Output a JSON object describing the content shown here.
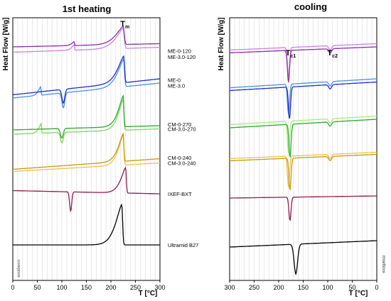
{
  "chart_data": [
    {
      "type": "line",
      "title": "1st heating",
      "title_sub_main": "T",
      "title_sub": "m",
      "ylabel": "Heat Flow [W/g]",
      "xlabel": "T [°C]",
      "side_note": "exotherm",
      "xlim": [
        0,
        300
      ],
      "xticks": [
        0,
        50,
        100,
        150,
        200,
        250,
        300
      ],
      "grid": "vertical",
      "peak_label": {
        "main": "T",
        "sub": "m",
        "x": 225
      },
      "series": [
        {
          "name": "ME-3.0-120",
          "color": "#d080e8",
          "baseline": 0.905,
          "label_pos": 0.883,
          "tail": 0.928,
          "features": [
            {
              "x": 125,
              "amp": 0.025,
              "w": 2
            },
            {
              "x": 225,
              "amp": 0.095,
              "w": 6
            }
          ]
        },
        {
          "name": "ME-0-120",
          "color": "#8c2fa8",
          "baseline": 0.93,
          "label_pos": 0.912,
          "tail": 0.945,
          "features": [
            {
              "x": 125,
              "amp": 0.018,
              "w": 2
            },
            {
              "x": 225,
              "amp": 0.085,
              "w": 6
            }
          ]
        },
        {
          "name": "ME-3.0",
          "color": "#4a90e2",
          "baseline": 0.69,
          "label_pos": 0.748,
          "tail": 0.76,
          "features": [
            {
              "x": 57,
              "amp": 0.04,
              "w": 2
            },
            {
              "x": 103,
              "amp": -0.07,
              "w": 4
            },
            {
              "x": 226,
              "amp": 0.13,
              "w": 5
            }
          ]
        },
        {
          "name": "ME-0",
          "color": "#1a2fd0",
          "baseline": 0.705,
          "label_pos": 0.775,
          "tail": 0.78,
          "features": [
            {
              "x": 103,
              "amp": -0.065,
              "w": 4
            },
            {
              "x": 226,
              "amp": 0.125,
              "w": 5
            }
          ]
        },
        {
          "name": "CM-3.0-270",
          "color": "#7ed957",
          "baseline": 0.52,
          "label_pos": 0.545,
          "tail": 0.545,
          "features": [
            {
              "x": 58,
              "amp": 0.045,
              "w": 2
            },
            {
              "x": 100,
              "amp": -0.05,
              "w": 4
            },
            {
              "x": 225,
              "amp": 0.145,
              "w": 4
            }
          ]
        },
        {
          "name": "CM-0-270",
          "color": "#2fa82f",
          "baseline": 0.54,
          "label_pos": 0.567,
          "tail": 0.56,
          "features": [
            {
              "x": 100,
              "amp": -0.045,
              "w": 4
            },
            {
              "x": 225,
              "amp": 0.145,
              "w": 4
            }
          ]
        },
        {
          "name": "CM-3.0-240",
          "color": "#f2c14e",
          "baseline": 0.345,
          "label_pos": 0.385,
          "tail": 0.385,
          "features": [
            {
              "x": 225,
              "amp": 0.14,
              "w": 4
            }
          ]
        },
        {
          "name": "CM-0-240",
          "color": "#c79a10",
          "baseline": 0.355,
          "label_pos": 0.41,
          "tail": 0.405,
          "features": [
            {
              "x": 225,
              "amp": 0.13,
              "w": 4
            }
          ]
        },
        {
          "name": "IXEF-BXT",
          "color": "#8e1b52",
          "baseline": 0.255,
          "label_pos": 0.24,
          "tail": 0.24,
          "features": [
            {
              "x": 118,
              "amp": -0.09,
              "w": 3
            },
            {
              "x": 230,
              "amp": 0.12,
              "w": 4
            }
          ]
        },
        {
          "name": "Ultramid B27",
          "color": "#000000",
          "baseline": 0.0,
          "label_pos": 0.0,
          "tail": 0.0,
          "features": [
            {
              "x": 222,
              "amp": 0.19,
              "w": 5
            }
          ]
        }
      ]
    },
    {
      "type": "line",
      "title": "cooling",
      "ylabel": "Heat Flow [W/g]",
      "xlabel": "T [°C]",
      "side_note": "exotherm",
      "xlim": [
        300,
        0
      ],
      "xticks": [
        300,
        250,
        200,
        150,
        100,
        50,
        0
      ],
      "grid": "vertical",
      "peak_labels": [
        {
          "main": "T",
          "sub": "c1",
          "x": 180
        },
        {
          "main": "T",
          "sub": "c2",
          "x": 95
        }
      ],
      "series": [
        {
          "name": "ME-3.0-120",
          "color": "#d080e8",
          "baseline": 0.925,
          "tail": 0.955,
          "features": [
            {
              "x": 180,
              "amp": -0.14,
              "w": 3
            },
            {
              "x": 95,
              "amp": -0.02,
              "w": 4
            }
          ]
        },
        {
          "name": "ME-0-120",
          "color": "#8c2fa8",
          "baseline": 0.912,
          "tail": 0.94,
          "features": [
            {
              "x": 180,
              "amp": -0.15,
              "w": 3
            },
            {
              "x": 95,
              "amp": -0.02,
              "w": 4
            }
          ]
        },
        {
          "name": "ME-3.0",
          "color": "#4a90e2",
          "baseline": 0.748,
          "tail": 0.79,
          "features": [
            {
              "x": 180,
              "amp": -0.14,
              "w": 3
            },
            {
              "x": 95,
              "amp": -0.02,
              "w": 4
            }
          ]
        },
        {
          "name": "ME-0",
          "color": "#1a2fd0",
          "baseline": 0.735,
          "tail": 0.775,
          "features": [
            {
              "x": 178,
              "amp": -0.15,
              "w": 3
            },
            {
              "x": 95,
              "amp": -0.02,
              "w": 4
            }
          ]
        },
        {
          "name": "CM-3.0-270",
          "color": "#a8ec7a",
          "baseline": 0.575,
          "tail": 0.615,
          "features": [
            {
              "x": 180,
              "amp": -0.15,
              "w": 3
            },
            {
              "x": 95,
              "amp": -0.02,
              "w": 4
            }
          ]
        },
        {
          "name": "CM-0-270",
          "color": "#2fa82f",
          "baseline": 0.56,
          "tail": 0.6,
          "features": [
            {
              "x": 177,
              "amp": -0.155,
              "w": 3
            },
            {
              "x": 95,
              "amp": -0.02,
              "w": 4
            }
          ]
        },
        {
          "name": "CM-3.0-240",
          "color": "#f2c14e",
          "baseline": 0.415,
          "tail": 0.445,
          "features": [
            {
              "x": 180,
              "amp": -0.145,
              "w": 3
            },
            {
              "x": 95,
              "amp": -0.02,
              "w": 4
            }
          ]
        },
        {
          "name": "CM-0-240",
          "color": "#c79a10",
          "baseline": 0.405,
          "tail": 0.435,
          "features": [
            {
              "x": 177,
              "amp": -0.15,
              "w": 3
            },
            {
              "x": 95,
              "amp": -0.02,
              "w": 4
            }
          ]
        },
        {
          "name": "IXEF-BXT",
          "color": "#8e1b52",
          "baseline": 0.23,
          "tail": 0.24,
          "features": [
            {
              "x": 177,
              "amp": -0.11,
              "w": 3
            }
          ]
        },
        {
          "name": "Ultramid B27",
          "color": "#000000",
          "baseline": 0.0,
          "tail": 0.03,
          "features": [
            {
              "x": 165,
              "amp": -0.14,
              "w": 5
            }
          ]
        }
      ]
    }
  ]
}
